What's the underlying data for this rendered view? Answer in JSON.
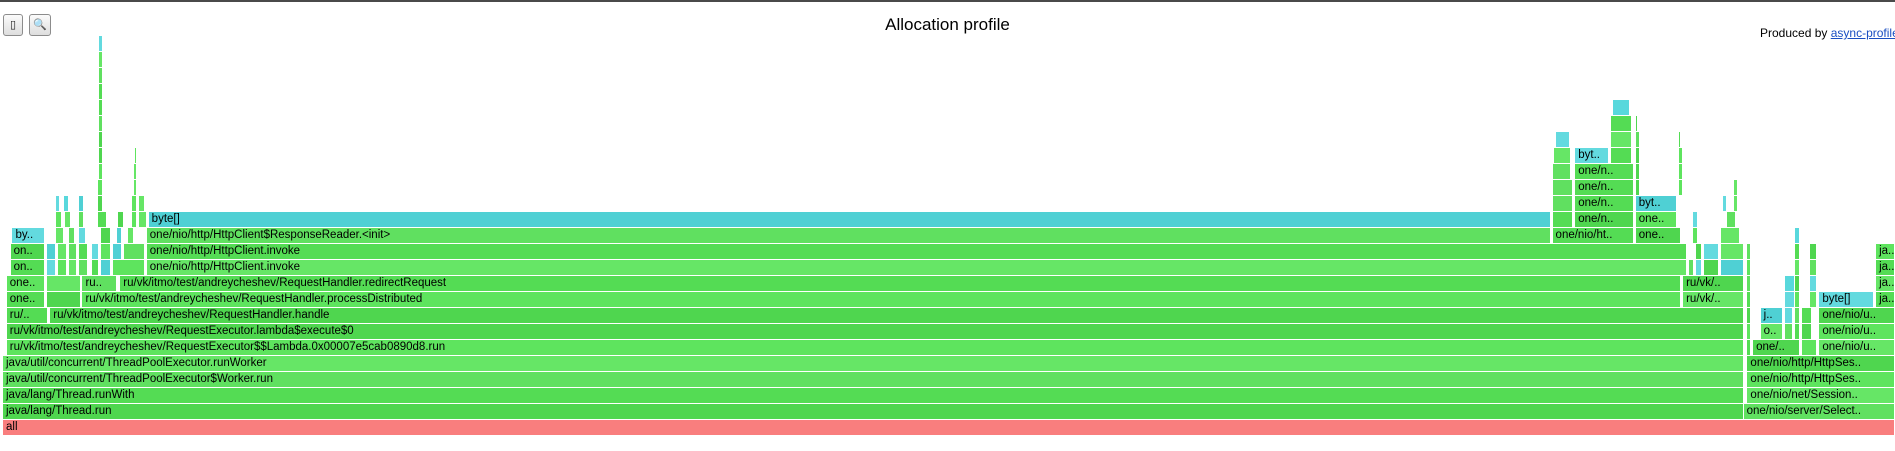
{
  "toolbar": {
    "reverse_icon": "▯",
    "search_icon": "🔍"
  },
  "header": {
    "title": "Allocation profile",
    "credit_prefix": "Produced by ",
    "credit_link": "async-profiler"
  },
  "colors": {
    "green": "#5ee45e",
    "teal": "#58d8dc",
    "root": "#f97e7e"
  },
  "chart_data": {
    "type": "flamegraph",
    "title": "Allocation profile",
    "total_width": 1000,
    "frames": [
      {
        "d": 0,
        "x": 0,
        "w": 1000,
        "n": "all",
        "c": "root"
      },
      {
        "d": 1,
        "x": 0,
        "w": 920,
        "n": "java/lang/Thread.run"
      },
      {
        "d": 2,
        "x": 0,
        "w": 920,
        "n": "java/lang/Thread.runWith"
      },
      {
        "d": 3,
        "x": 0,
        "w": 920,
        "n": "java/util/concurrent/ThreadPoolExecutor$Worker.run"
      },
      {
        "d": 4,
        "x": 0,
        "w": 920,
        "n": "java/util/concurrent/ThreadPoolExecutor.runWorker"
      },
      {
        "d": 5,
        "x": 2,
        "w": 918,
        "n": "ru/vk/itmo/test/andreycheshev/RequestExecutor$$Lambda.0x00007e5cab0890d8.run"
      },
      {
        "d": 6,
        "x": 2,
        "w": 918,
        "n": "ru/vk/itmo/test/andreycheshev/RequestExecutor.lambda$execute$0"
      },
      {
        "d": 7,
        "x": 2,
        "w": 22,
        "n": "ru/.."
      },
      {
        "d": 7,
        "x": 25,
        "w": 895,
        "n": "ru/vk/itmo/test/andreycheshev/RequestHandler.handle"
      },
      {
        "d": 8,
        "x": 2,
        "w": 20,
        "n": "one.."
      },
      {
        "d": 8,
        "x": 23,
        "w": 18,
        "n": ""
      },
      {
        "d": 8,
        "x": 42,
        "w": 845,
        "n": "ru/vk/itmo/test/andreycheshev/RequestHandler.processDistributed"
      },
      {
        "d": 8,
        "x": 888,
        "w": 32,
        "n": "ru/vk/.."
      },
      {
        "d": 9,
        "x": 2,
        "w": 20,
        "n": "one.."
      },
      {
        "d": 9,
        "x": 23,
        "w": 18,
        "n": ""
      },
      {
        "d": 9,
        "x": 42,
        "w": 18,
        "n": "ru.."
      },
      {
        "d": 9,
        "x": 62,
        "w": 825,
        "n": "ru/vk/itmo/test/andreycheshev/RequestHandler.redirectRequest"
      },
      {
        "d": 9,
        "x": 888,
        "w": 32,
        "n": "ru/vk/.."
      },
      {
        "d": 10,
        "x": 4,
        "w": 18,
        "n": "on.."
      },
      {
        "d": 10,
        "x": 23,
        "w": 5,
        "n": "",
        "c": "teal"
      },
      {
        "d": 10,
        "x": 29,
        "w": 5,
        "n": ""
      },
      {
        "d": 10,
        "x": 35,
        "w": 4,
        "n": ""
      },
      {
        "d": 10,
        "x": 40,
        "w": 5,
        "n": ""
      },
      {
        "d": 10,
        "x": 47,
        "w": 4,
        "n": ""
      },
      {
        "d": 10,
        "x": 52,
        "w": 5,
        "n": "",
        "c": "teal"
      },
      {
        "d": 10,
        "x": 58,
        "w": 17,
        "n": ""
      },
      {
        "d": 10,
        "x": 76,
        "w": 814,
        "n": "one/nio/http/HttpClient.invoke"
      },
      {
        "d": 10,
        "x": 891,
        "w": 3,
        "n": ""
      },
      {
        "d": 10,
        "x": 895,
        "w": 3,
        "n": "",
        "c": "teal"
      },
      {
        "d": 10,
        "x": 899,
        "w": 8,
        "n": ""
      },
      {
        "d": 10,
        "x": 908,
        "w": 12,
        "n": "",
        "c": "teal"
      },
      {
        "d": 11,
        "x": 4,
        "w": 18,
        "n": "on.."
      },
      {
        "d": 11,
        "x": 23,
        "w": 5,
        "n": "",
        "c": "teal"
      },
      {
        "d": 11,
        "x": 29,
        "w": 5,
        "n": ""
      },
      {
        "d": 11,
        "x": 35,
        "w": 4,
        "n": ""
      },
      {
        "d": 11,
        "x": 40,
        "w": 5,
        "n": ""
      },
      {
        "d": 11,
        "x": 47,
        "w": 4,
        "n": "",
        "c": "teal"
      },
      {
        "d": 11,
        "x": 52,
        "w": 5,
        "n": ""
      },
      {
        "d": 11,
        "x": 58,
        "w": 5,
        "n": "",
        "c": "teal"
      },
      {
        "d": 11,
        "x": 64,
        "w": 11,
        "n": ""
      },
      {
        "d": 11,
        "x": 76,
        "w": 814,
        "n": "one/nio/http/HttpClient.invoke"
      },
      {
        "d": 11,
        "x": 895,
        "w": 3,
        "n": ""
      },
      {
        "d": 11,
        "x": 899,
        "w": 8,
        "n": "",
        "c": "teal"
      },
      {
        "d": 11,
        "x": 908,
        "w": 12,
        "n": ""
      },
      {
        "d": 12,
        "x": 5,
        "w": 17,
        "n": "by..",
        "c": "teal"
      },
      {
        "d": 12,
        "x": 28,
        "w": 4,
        "n": ""
      },
      {
        "d": 12,
        "x": 35,
        "w": 3,
        "n": ""
      },
      {
        "d": 12,
        "x": 40,
        "w": 4,
        "n": "",
        "c": "teal"
      },
      {
        "d": 12,
        "x": 52,
        "w": 5,
        "n": ""
      },
      {
        "d": 12,
        "x": 60,
        "w": 3,
        "n": "",
        "c": "teal"
      },
      {
        "d": 12,
        "x": 66,
        "w": 3,
        "n": ""
      },
      {
        "d": 12,
        "x": 76,
        "w": 742,
        "n": "one/nio/http/HttpClient$ResponseReader.<init>"
      },
      {
        "d": 12,
        "x": 819,
        "w": 43,
        "n": "one/nio/ht.."
      },
      {
        "d": 12,
        "x": 863,
        "w": 24,
        "n": "one.."
      },
      {
        "d": 12,
        "x": 893,
        "w": 3,
        "n": ""
      },
      {
        "d": 12,
        "x": 908,
        "w": 10,
        "n": ""
      },
      {
        "d": 13,
        "x": 28,
        "w": 3,
        "n": ""
      },
      {
        "d": 13,
        "x": 33,
        "w": 3,
        "n": ""
      },
      {
        "d": 13,
        "x": 40,
        "w": 3,
        "n": ""
      },
      {
        "d": 13,
        "x": 50,
        "w": 5,
        "n": ""
      },
      {
        "d": 13,
        "x": 61,
        "w": 3,
        "n": ""
      },
      {
        "d": 13,
        "x": 68,
        "w": 3,
        "n": ""
      },
      {
        "d": 13,
        "x": 72,
        "w": 4,
        "n": ""
      },
      {
        "d": 13,
        "x": 77,
        "w": 741,
        "n": "byte[]",
        "c": "teal"
      },
      {
        "d": 13,
        "x": 819,
        "w": 11,
        "n": ""
      },
      {
        "d": 13,
        "x": 831,
        "w": 31,
        "n": "one/n.."
      },
      {
        "d": 13,
        "x": 863,
        "w": 22,
        "n": "one.."
      },
      {
        "d": 13,
        "x": 893,
        "w": 3,
        "n": "",
        "c": "teal"
      },
      {
        "d": 13,
        "x": 911,
        "w": 5,
        "n": ""
      },
      {
        "d": 14,
        "x": 28,
        "w": 2,
        "n": "",
        "c": "teal"
      },
      {
        "d": 14,
        "x": 32,
        "w": 3,
        "n": "",
        "c": "teal"
      },
      {
        "d": 14,
        "x": 40,
        "w": 3,
        "n": "",
        "c": "teal"
      },
      {
        "d": 14,
        "x": 50,
        "w": 3,
        "n": ""
      },
      {
        "d": 14,
        "x": 68,
        "w": 3,
        "n": ""
      },
      {
        "d": 14,
        "x": 72,
        "w": 3,
        "n": ""
      },
      {
        "d": 14,
        "x": 819,
        "w": 11,
        "n": ""
      },
      {
        "d": 14,
        "x": 831,
        "w": 31,
        "n": "one/n.."
      },
      {
        "d": 14,
        "x": 863,
        "w": 22,
        "n": "byt..",
        "c": "teal"
      },
      {
        "d": 14,
        "x": 909,
        "w": 2,
        "n": "",
        "c": "teal"
      },
      {
        "d": 14,
        "x": 915,
        "w": 2,
        "n": ""
      },
      {
        "d": 15,
        "x": 50,
        "w": 3,
        "n": ""
      },
      {
        "d": 15,
        "x": 69,
        "w": 2,
        "n": ""
      },
      {
        "d": 15,
        "x": 819,
        "w": 11,
        "n": ""
      },
      {
        "d": 15,
        "x": 831,
        "w": 31,
        "n": "one/n.."
      },
      {
        "d": 15,
        "x": 863,
        "w": 2,
        "n": ""
      },
      {
        "d": 15,
        "x": 886,
        "w": 2,
        "n": ""
      },
      {
        "d": 15,
        "x": 915,
        "w": 2,
        "n": ""
      },
      {
        "d": 16,
        "x": 51,
        "w": 2,
        "n": ""
      },
      {
        "d": 16,
        "x": 69,
        "w": 2,
        "n": ""
      },
      {
        "d": 16,
        "x": 819,
        "w": 10,
        "n": ""
      },
      {
        "d": 16,
        "x": 831,
        "w": 31,
        "n": "one/n.."
      },
      {
        "d": 16,
        "x": 863,
        "w": 2,
        "n": ""
      },
      {
        "d": 16,
        "x": 886,
        "w": 2,
        "n": ""
      },
      {
        "d": 17,
        "x": 51,
        "w": 2,
        "n": ""
      },
      {
        "d": 17,
        "x": 70,
        "w": 1,
        "n": ""
      },
      {
        "d": 17,
        "x": 820,
        "w": 9,
        "n": ""
      },
      {
        "d": 17,
        "x": 831,
        "w": 18,
        "n": "byt..",
        "c": "teal"
      },
      {
        "d": 17,
        "x": 850,
        "w": 11,
        "n": ""
      },
      {
        "d": 17,
        "x": 863,
        "w": 2,
        "n": ""
      },
      {
        "d": 17,
        "x": 886,
        "w": 2,
        "n": ""
      },
      {
        "d": 18,
        "x": 51,
        "w": 2,
        "n": ""
      },
      {
        "d": 18,
        "x": 821,
        "w": 7,
        "n": "",
        "c": "teal"
      },
      {
        "d": 18,
        "x": 850,
        "w": 11,
        "n": ""
      },
      {
        "d": 18,
        "x": 863,
        "w": 2,
        "n": ""
      },
      {
        "d": 18,
        "x": 886,
        "w": 1,
        "n": ""
      },
      {
        "d": 19,
        "x": 51,
        "w": 2,
        "n": ""
      },
      {
        "d": 19,
        "x": 850,
        "w": 11,
        "n": ""
      },
      {
        "d": 19,
        "x": 863,
        "w": 1,
        "n": ""
      },
      {
        "d": 20,
        "x": 51,
        "w": 2,
        "n": ""
      },
      {
        "d": 20,
        "x": 851,
        "w": 9,
        "n": "",
        "c": "teal"
      },
      {
        "d": 21,
        "x": 51,
        "w": 2,
        "n": ""
      },
      {
        "d": 22,
        "x": 51,
        "w": 2,
        "n": ""
      },
      {
        "d": 23,
        "x": 51,
        "w": 2,
        "n": ""
      },
      {
        "d": 24,
        "x": 51,
        "w": 2,
        "n": "",
        "c": "teal"
      },
      {
        "d": 1,
        "x": 920,
        "w": 80,
        "n": "one/nio/server/Select.."
      },
      {
        "d": 2,
        "x": 922,
        "w": 78,
        "n": "one/nio/net/Session.."
      },
      {
        "d": 3,
        "x": 922,
        "w": 78,
        "n": "one/nio/http/HttpSes.."
      },
      {
        "d": 4,
        "x": 922,
        "w": 78,
        "n": "one/nio/http/HttpSes.."
      },
      {
        "d": 5,
        "x": 922,
        "w": 2,
        "n": ""
      },
      {
        "d": 5,
        "x": 925,
        "w": 25,
        "n": "one/.."
      },
      {
        "d": 5,
        "x": 951,
        "w": 8,
        "n": ""
      },
      {
        "d": 5,
        "x": 960,
        "w": 40,
        "n": "one/nio/u.."
      },
      {
        "d": 6,
        "x": 922,
        "w": 2,
        "n": ""
      },
      {
        "d": 6,
        "x": 929,
        "w": 12,
        "n": "o.."
      },
      {
        "d": 6,
        "x": 942,
        "w": 4,
        "n": ""
      },
      {
        "d": 6,
        "x": 947,
        "w": 3,
        "n": ""
      },
      {
        "d": 6,
        "x": 951,
        "w": 5,
        "n": ""
      },
      {
        "d": 6,
        "x": 960,
        "w": 40,
        "n": "one/nio/u.."
      },
      {
        "d": 7,
        "x": 922,
        "w": 2,
        "n": ""
      },
      {
        "d": 7,
        "x": 929,
        "w": 12,
        "n": "j..",
        "c": "teal"
      },
      {
        "d": 7,
        "x": 942,
        "w": 4,
        "n": "",
        "c": "teal"
      },
      {
        "d": 7,
        "x": 947,
        "w": 3,
        "n": ""
      },
      {
        "d": 7,
        "x": 951,
        "w": 5,
        "n": ""
      },
      {
        "d": 7,
        "x": 960,
        "w": 40,
        "n": "one/nio/u.."
      },
      {
        "d": 8,
        "x": 922,
        "w": 2,
        "n": ""
      },
      {
        "d": 8,
        "x": 942,
        "w": 5,
        "n": "",
        "c": "teal"
      },
      {
        "d": 8,
        "x": 947,
        "w": 3,
        "n": ""
      },
      {
        "d": 8,
        "x": 955,
        "w": 4,
        "n": ""
      },
      {
        "d": 8,
        "x": 960,
        "w": 29,
        "n": "byte[]",
        "c": "teal"
      },
      {
        "d": 8,
        "x": 990,
        "w": 10,
        "n": "ja.."
      },
      {
        "d": 9,
        "x": 922,
        "w": 2,
        "n": ""
      },
      {
        "d": 9,
        "x": 942,
        "w": 5,
        "n": "",
        "c": "teal"
      },
      {
        "d": 9,
        "x": 947,
        "w": 3,
        "n": ""
      },
      {
        "d": 9,
        "x": 955,
        "w": 4,
        "n": "",
        "c": "teal"
      },
      {
        "d": 9,
        "x": 990,
        "w": 10,
        "n": "ja.."
      },
      {
        "d": 10,
        "x": 922,
        "w": 2,
        "n": ""
      },
      {
        "d": 10,
        "x": 947,
        "w": 3,
        "n": ""
      },
      {
        "d": 10,
        "x": 955,
        "w": 4,
        "n": ""
      },
      {
        "d": 10,
        "x": 990,
        "w": 10,
        "n": "ja.."
      },
      {
        "d": 11,
        "x": 922,
        "w": 2,
        "n": ""
      },
      {
        "d": 11,
        "x": 947,
        "w": 3,
        "n": ""
      },
      {
        "d": 11,
        "x": 955,
        "w": 4,
        "n": ""
      },
      {
        "d": 11,
        "x": 990,
        "w": 10,
        "n": "ja.."
      },
      {
        "d": 12,
        "x": 947,
        "w": 3,
        "n": "",
        "c": "teal"
      }
    ]
  }
}
